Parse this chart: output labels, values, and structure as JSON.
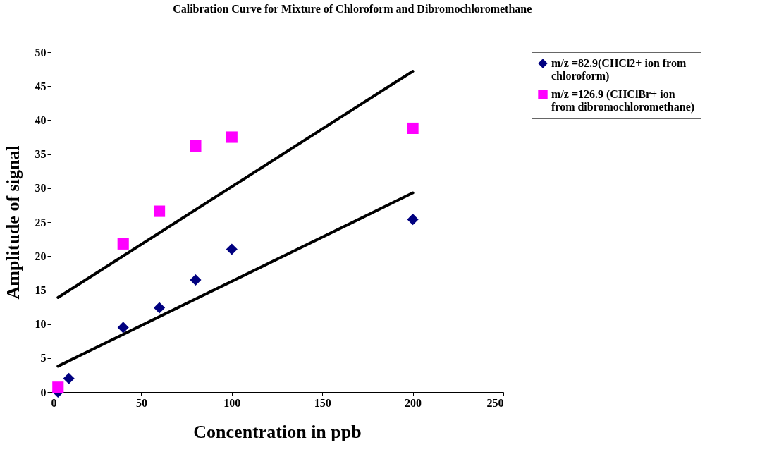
{
  "chart_data": {
    "type": "scatter",
    "title": "Calibration Curve for Mixture of Chloroform and Dibromochloromethane",
    "xlabel": "Concentration in ppb",
    "ylabel": "Amplitude of signal",
    "xlim": [
      0,
      250
    ],
    "xticks": [
      0,
      50,
      100,
      150,
      200,
      250
    ],
    "ylim": [
      0,
      50
    ],
    "yticks": [
      0,
      5,
      10,
      15,
      20,
      25,
      30,
      35,
      40,
      45,
      50
    ],
    "grid": false,
    "legend": "right",
    "series": [
      {
        "name": "m/z =82.9(CHCl2+ ion from chloroform)",
        "color": "#000080",
        "marker": "diamond",
        "x": [
          4,
          10,
          40,
          60,
          80,
          100,
          200
        ],
        "values": [
          0,
          2,
          9.5,
          12.4,
          16.5,
          21,
          25.4
        ]
      },
      {
        "name": "m/z =126.9 (CHClBr+ ion from dibromochloromethane)",
        "color": "#ff00ff",
        "marker": "square",
        "x": [
          4,
          40,
          60,
          80,
          100,
          200
        ],
        "values": [
          0.7,
          21.8,
          26.6,
          36.2,
          37.5,
          38.8
        ]
      },
      {
        "type": "line",
        "color": "#000000",
        "x": [
          4,
          200
        ],
        "values": [
          3.8,
          29.3
        ]
      },
      {
        "type": "line",
        "color": "#000000",
        "x": [
          4,
          200
        ],
        "values": [
          13.9,
          47.2
        ]
      }
    ]
  }
}
